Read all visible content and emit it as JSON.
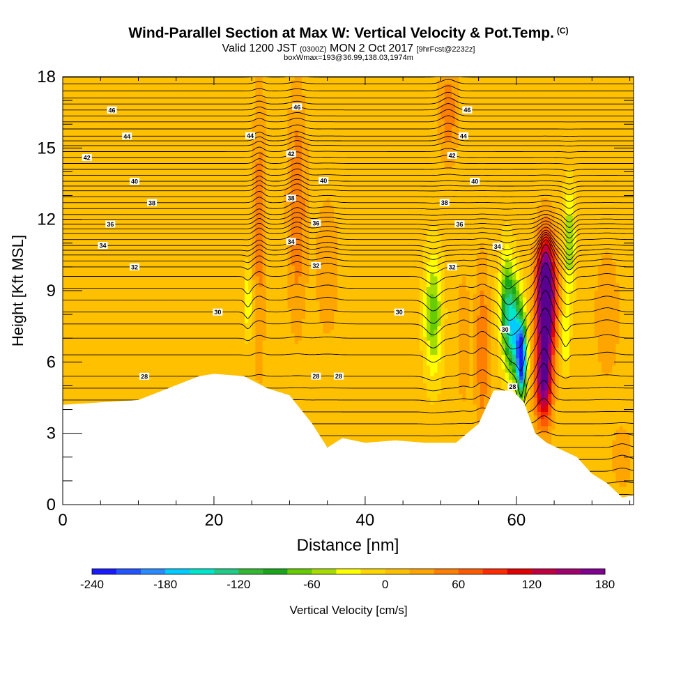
{
  "header": {
    "title": "Wind-Parallel Section at Max W: Vertical Velocity & Pot.Temp.",
    "title_mark": "(C)",
    "valid_a": "Valid 1200 JST",
    "valid_utc": "(0300Z)",
    "valid_b": "MON 2 Oct 2017",
    "valid_fcst": "[9hrFcst@2232z]",
    "box_info": "boxWmax=193@36.99,138.03,1974m"
  },
  "chart_data": {
    "type": "heatmap",
    "xlabel": "Distance [nm]",
    "ylabel": "Height [Kft MSL]",
    "xlim": [
      0,
      75.5
    ],
    "ylim": [
      0,
      18
    ],
    "x_ticks": [
      0,
      20,
      40,
      60
    ],
    "y_ticks": [
      0,
      3,
      6,
      9,
      12,
      15,
      18
    ],
    "colorbar": {
      "label": "Vertical Velocity [cm/s]",
      "min": -240,
      "max": 180,
      "step": 20,
      "ticks": [
        -240,
        -180,
        -120,
        -60,
        0,
        60,
        120,
        180
      ],
      "colors": [
        "#1a1aff",
        "#2255ff",
        "#2a8bff",
        "#00ccff",
        "#00e6cc",
        "#20cc88",
        "#33b833",
        "#1aa61a",
        "#66cc00",
        "#a6dd00",
        "#ffff00",
        "#ffd700",
        "#ffc000",
        "#ffa500",
        "#ff8000",
        "#ff5a00",
        "#ff2a00",
        "#e00000",
        "#c00040",
        "#a00070",
        "#800090",
        "#5a0090"
      ]
    },
    "background_w": 10,
    "terrain": [
      [
        0,
        4.2
      ],
      [
        5,
        4.3
      ],
      [
        10,
        4.4
      ],
      [
        14,
        4.9
      ],
      [
        18,
        5.4
      ],
      [
        20,
        5.5
      ],
      [
        24,
        5.4
      ],
      [
        27,
        4.9
      ],
      [
        30,
        4.6
      ],
      [
        33,
        3.4
      ],
      [
        35,
        2.4
      ],
      [
        37,
        2.8
      ],
      [
        40,
        2.6
      ],
      [
        44,
        2.7
      ],
      [
        48,
        2.6
      ],
      [
        52,
        2.6
      ],
      [
        55,
        3.4
      ],
      [
        57,
        4.8
      ],
      [
        59.5,
        4.8
      ],
      [
        61,
        4.3
      ],
      [
        62.5,
        3
      ],
      [
        64,
        2.6
      ],
      [
        66,
        2.3
      ],
      [
        68,
        2
      ],
      [
        70,
        1.3
      ],
      [
        72,
        0.9
      ],
      [
        74,
        0.3
      ],
      [
        75.5,
        0.4
      ]
    ],
    "w_features": [
      {
        "x": 24.5,
        "y": 8.5,
        "rx": 0.5,
        "ry": 1.5,
        "w": -50
      },
      {
        "x": 26,
        "y": 12,
        "rx": 0.8,
        "ry": 6,
        "w": 40
      },
      {
        "x": 31,
        "y": 12.5,
        "rx": 1.2,
        "ry": 4.5,
        "w": 50
      },
      {
        "x": 35,
        "y": 10,
        "rx": 1.5,
        "ry": 3,
        "w": 25
      },
      {
        "x": 49,
        "y": 8,
        "rx": 1.2,
        "ry": 2.6,
        "w": -80
      },
      {
        "x": 51,
        "y": 16.5,
        "rx": 1.2,
        "ry": 2,
        "w": 45
      },
      {
        "x": 53,
        "y": 7,
        "rx": 0.8,
        "ry": 2.5,
        "w": 30
      },
      {
        "x": 55.5,
        "y": 6.5,
        "rx": 0.9,
        "ry": 3.5,
        "w": 50
      },
      {
        "x": 58.7,
        "y": 8.5,
        "rx": 1,
        "ry": 2.2,
        "w": -90
      },
      {
        "x": 59.8,
        "y": 7.2,
        "rx": 1.2,
        "ry": 2,
        "w": -150
      },
      {
        "x": 60.7,
        "y": 6,
        "rx": 0.6,
        "ry": 1.4,
        "w": -230
      },
      {
        "x": 63.8,
        "y": 7.5,
        "rx": 1.1,
        "ry": 3,
        "w": 165
      },
      {
        "x": 64,
        "y": 9.2,
        "rx": 1.3,
        "ry": 2,
        "w": 130
      },
      {
        "x": 63.5,
        "y": 5,
        "rx": 1,
        "ry": 1.5,
        "w": 100
      },
      {
        "x": 67,
        "y": 11,
        "rx": 0.8,
        "ry": 2.3,
        "w": -70
      },
      {
        "x": 66.5,
        "y": 7,
        "rx": 0.5,
        "ry": 1.3,
        "w": -60
      },
      {
        "x": 72,
        "y": 8,
        "rx": 1.5,
        "ry": 2.5,
        "w": 30
      },
      {
        "x": 74,
        "y": 2,
        "rx": 1.2,
        "ry": 1.2,
        "w": 30
      }
    ],
    "theta_contours": {
      "base_levels": [
        [
          4.4,
          27
        ],
        [
          5.4,
          28
        ],
        [
          6.3,
          28.5
        ],
        [
          7,
          29
        ],
        [
          7.6,
          29.5
        ],
        [
          8.1,
          30
        ],
        [
          8.6,
          30.5
        ],
        [
          9.1,
          31
        ],
        [
          9.6,
          31.5
        ],
        [
          10,
          32
        ],
        [
          10.5,
          33
        ],
        [
          10.9,
          34
        ],
        [
          11.4,
          35
        ],
        [
          11.8,
          36
        ],
        [
          12.2,
          37
        ],
        [
          12.7,
          38
        ],
        [
          13.2,
          39
        ],
        [
          13.6,
          40
        ],
        [
          14.1,
          41
        ],
        [
          14.6,
          42
        ],
        [
          15.1,
          43
        ],
        [
          15.5,
          44
        ],
        [
          16.1,
          45
        ],
        [
          16.6,
          46
        ],
        [
          17.1,
          47
        ],
        [
          17.7,
          48
        ]
      ],
      "interval": 0.5,
      "labels": [
        {
          "v": 28,
          "x": 10.8
        },
        {
          "v": 30,
          "x": 20.5
        },
        {
          "v": 32,
          "x": 9.5
        },
        {
          "v": 34,
          "x": 5.3
        },
        {
          "v": 36,
          "x": 6.3
        },
        {
          "v": 38,
          "x": 11.8
        },
        {
          "v": 40,
          "x": 9.5
        },
        {
          "v": 42,
          "x": 3.2
        },
        {
          "v": 44,
          "x": 8.5
        },
        {
          "v": 46,
          "x": 6.5
        },
        {
          "v": 34,
          "x": 30.2
        },
        {
          "v": 32,
          "x": 33.5
        },
        {
          "v": 36,
          "x": 33.5
        },
        {
          "v": 38,
          "x": 30.2
        },
        {
          "v": 40,
          "x": 34.5
        },
        {
          "v": 42,
          "x": 30.2
        },
        {
          "v": 44,
          "x": 24.8
        },
        {
          "v": 46,
          "x": 31
        },
        {
          "v": 28,
          "x": 33.5
        },
        {
          "v": 28,
          "x": 36.5
        },
        {
          "v": 30,
          "x": 44.5
        },
        {
          "v": 32,
          "x": 51.5
        },
        {
          "v": 34,
          "x": 57.5
        },
        {
          "v": 36,
          "x": 52.5
        },
        {
          "v": 38,
          "x": 50.5
        },
        {
          "v": 40,
          "x": 54.5
        },
        {
          "v": 42,
          "x": 51.5
        },
        {
          "v": 44,
          "x": 53
        },
        {
          "v": 46,
          "x": 53.5
        },
        {
          "v": 30,
          "x": 58.5
        },
        {
          "v": 28,
          "x": 59.5
        }
      ]
    }
  }
}
